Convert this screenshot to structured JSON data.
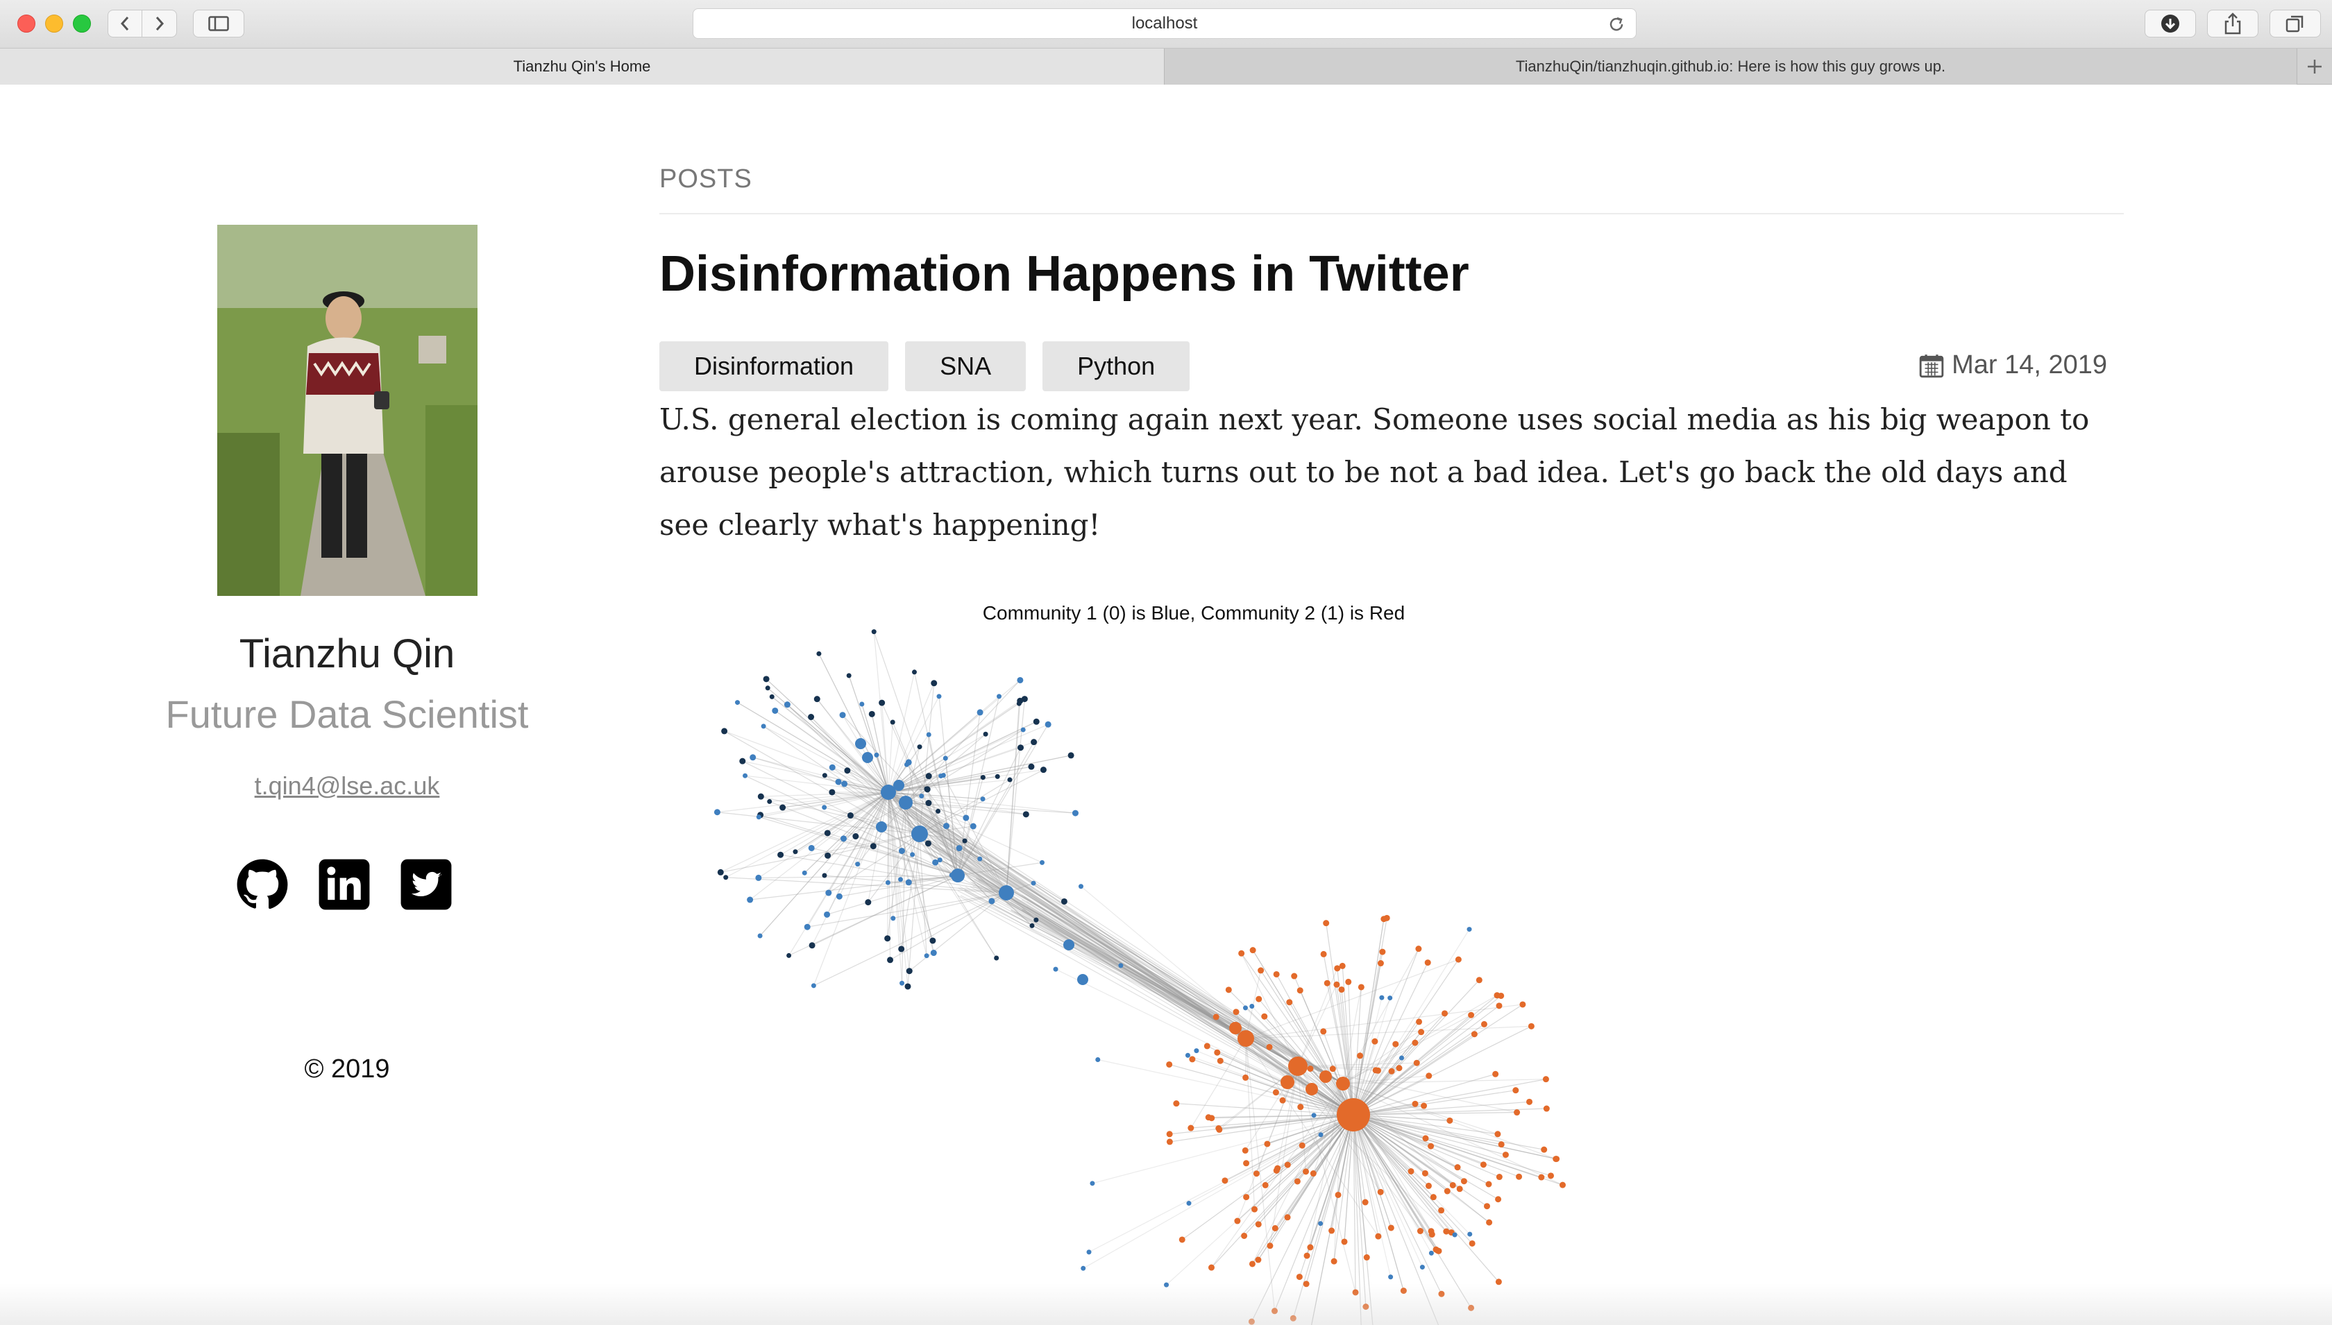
{
  "browser": {
    "url": "localhost",
    "tabs": [
      {
        "label": "Tianzhu Qin's Home"
      },
      {
        "label": "TianzhuQin/tianzhuqin.github.io: Here is how this guy grows up."
      }
    ]
  },
  "profile": {
    "name": "Tianzhu Qin",
    "role": "Future Data Scientist",
    "email": "t.qin4@lse.ac.uk",
    "socials": [
      "github-icon",
      "linkedin-icon",
      "twitter-icon"
    ],
    "copyright": "© 2019"
  },
  "main": {
    "section_label": "POSTS",
    "post": {
      "title": "Disinformation Happens in Twitter",
      "tags": [
        "Disinformation",
        "SNA",
        "Python"
      ],
      "date": "Mar 14, 2019",
      "excerpt": "U.S. general election is coming again next year. Someone uses social media as his big weapon to arouse people's attraction, which turns out to be not a bad idea. Let's go back the old days and see clearly what's happening!",
      "figure_title": "Community 1 (0) is Blue, Community 2 (1) is Red"
    }
  },
  "colors": {
    "community_blue": "#3f7fbf",
    "community_red": "#e36a2a",
    "edge_gray": "#9a9a9a",
    "dark_node": "#16324f"
  }
}
